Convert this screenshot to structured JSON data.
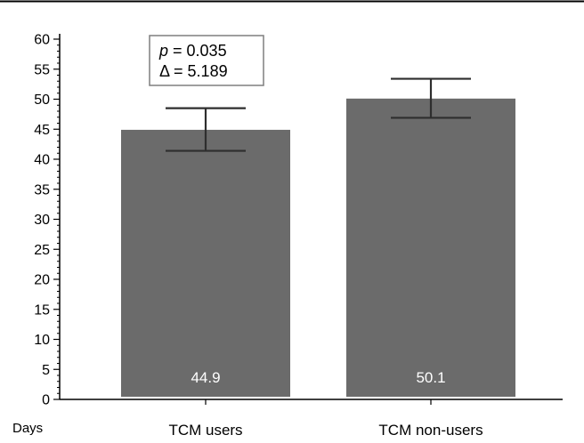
{
  "chart_data": {
    "type": "bar",
    "categories": [
      "TCM users",
      "TCM non-users"
    ],
    "values": [
      44.9,
      50.1
    ],
    "value_labels": [
      "44.9",
      "50.1"
    ],
    "error_bars": [
      {
        "low": 41.4,
        "high": 48.5
      },
      {
        "low": 46.9,
        "high": 53.4
      }
    ],
    "ylabel": "Days",
    "ylim": [
      0,
      60
    ],
    "yticks": [
      0,
      5,
      10,
      15,
      20,
      25,
      30,
      35,
      40,
      45,
      50,
      55,
      60
    ],
    "annotation": {
      "p_symbol": "p",
      "p_value": " = 0.035",
      "delta": "Δ = 5.189"
    },
    "colors": {
      "bar": "#6b6b6b",
      "error_bar": "#2e2e2e",
      "axis": "#000000"
    },
    "grid": false
  }
}
